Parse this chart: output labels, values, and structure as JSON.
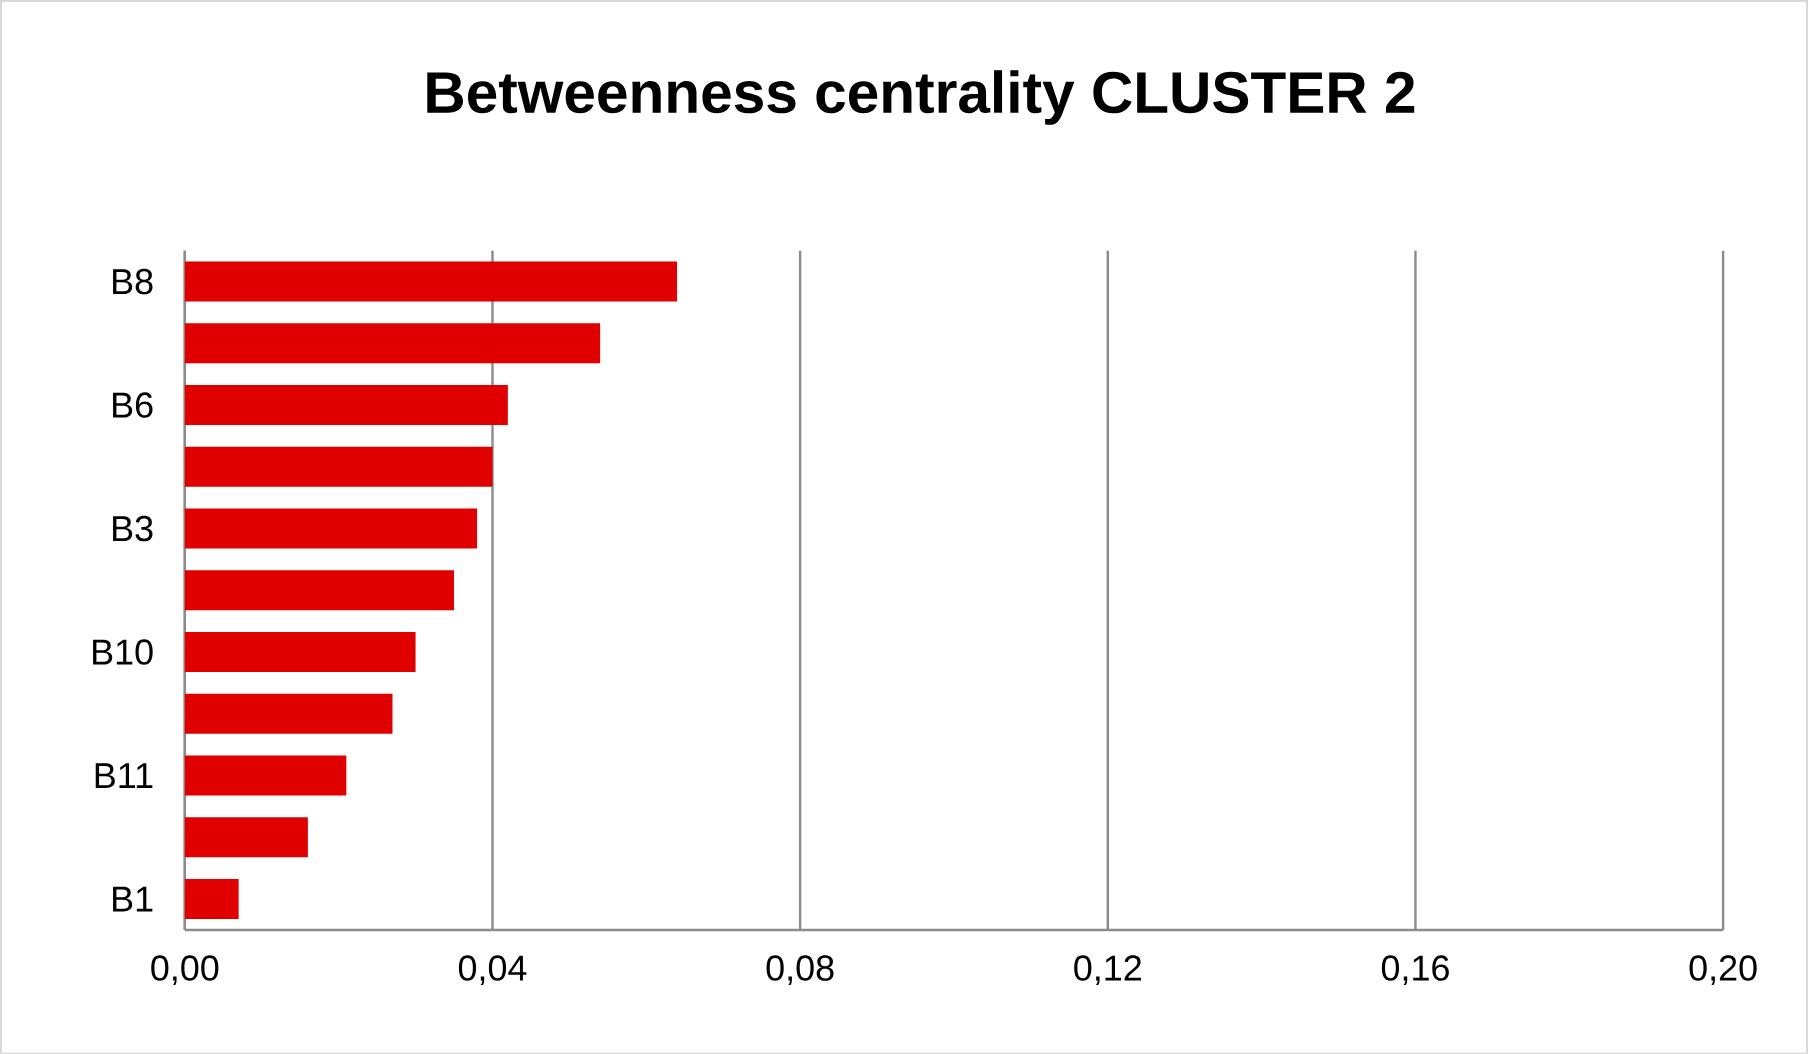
{
  "chart_data": {
    "type": "bar",
    "orientation": "horizontal",
    "title": "Betweenness centrality CLUSTER 2",
    "categories": [
      "B8",
      null,
      "B6",
      null,
      "B3",
      null,
      "B10",
      null,
      "B11",
      null,
      "B1"
    ],
    "values": [
      0.064,
      0.054,
      0.042,
      0.04,
      0.038,
      0.035,
      0.03,
      0.027,
      0.021,
      0.016,
      0.007
    ],
    "color": "#e00000",
    "xlim": [
      0,
      0.2
    ],
    "xticks": [
      {
        "value": 0,
        "label": "0,00"
      },
      {
        "value": 0.04,
        "label": "0,04"
      },
      {
        "value": 0.08,
        "label": "0,08"
      },
      {
        "value": 0.12,
        "label": "0,12"
      },
      {
        "value": 0.16,
        "label": "0,16"
      },
      {
        "value": 0.2,
        "label": "0,20"
      }
    ],
    "grid": "x"
  }
}
